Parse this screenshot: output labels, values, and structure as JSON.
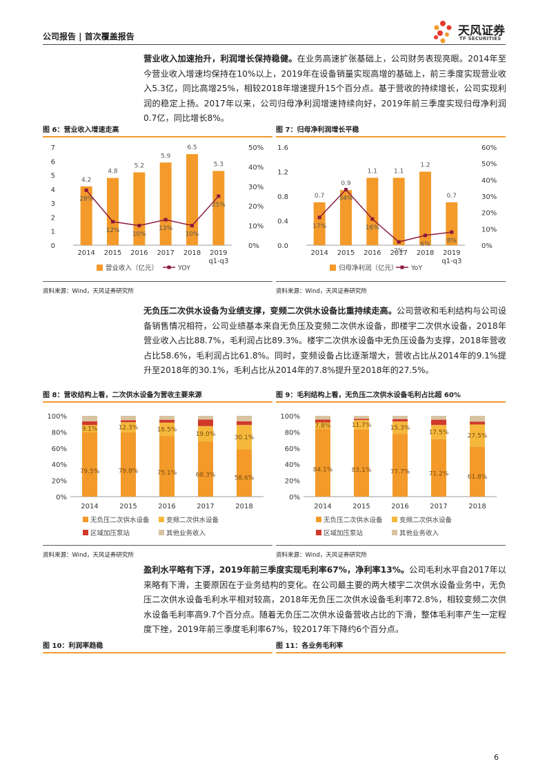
{
  "header": {
    "left": "公司报告 | 首次覆盖报告",
    "logo_cn": "天风证券",
    "logo_en": "TF SECURITIES"
  },
  "paragraphs": {
    "p1_bold": "营业收入加速抬升，利润增长保持稳健。",
    "p1_text": "在业务高速扩张基础上，公司财务表现亮眼。2014年至今营业收入增速均保持在10%以上，2019年在设备销量实现高增的基础上，前三季度实现营业收入5.3亿，同比高增25%，相较2018年增速提升15个百分点。基于营收的持续增长，公司实现利润的稳定上扬。2017年以来，公司归母净利润增速持续向好，2019年前三季度实现归母净利润0.7亿，同比增长8%。",
    "p2_bold": "无负压二次供水设备为业绩支撑，变频二次供水设备比重持续走高。",
    "p2_text": "公司营收和毛利结构与公司设备销售情况相符，公司业绩基本来自无负压及变频二次供水设备，即楼宇二次供水设备，2018年营业收入占比88.7%，毛利润占比89.3%。楼宇二次供水设备中无负压设备为支撑，2018年营收占比58.6%，毛利润占比61.8%。同时，变频设备占比逐渐增大，营收占比从2014年的9.1%提升至2018年的30.1%，毛利占比从2014年的7.8%提升至2018年的27.5%。",
    "p3_bold": "盈利水平略有下浮，2019年前三季度实现毛利率67%，净利率13%。",
    "p3_text": "公司毛利水平自2017年以来略有下滑，主要原因在于业务结构的变化。在公司最主要的两大楼宇二次供水设备业务中，无负压二次供水设备毛利水平相对较高，2018年无负压二次供水设备毛利率72.8%，相较变频二次供水设备毛利率高9.7个百分点。随着无负压二次供水设备营收占比的下滑，整体毛利率产生一定程度下挫，2019年前三季度毛利率67%，较2017年下降约6个百分点。"
  },
  "figures": {
    "fig6_title": "图 6：营业收入增速走高",
    "fig7_title": "图 7：归母净利润增长平稳",
    "fig8_title": "图 8：营收结构上看，二次供水设备为营收主要来源",
    "fig9_title": "图 9：毛利结构上看，无负压二次供水设备毛利占比超 60%",
    "fig10_title": "图 10：利润率趋稳",
    "fig11_title": "图 11：各业务毛利率",
    "source": "资料来源：Wind，天风证券研究所"
  },
  "page_number": "6",
  "colors": {
    "orange": "#F39A2A",
    "dark_red": "#8B1A3A",
    "yellow": "#F5B83C",
    "red": "#D0392B",
    "tan": "#D8C3A0"
  },
  "chart_data": [
    {
      "type": "bar",
      "categories": [
        "2014",
        "2015",
        "2016",
        "2017",
        "2018",
        "2019 q1-q3"
      ],
      "series": [
        {
          "name": "营业收入（亿元）",
          "values": [
            4.2,
            4.8,
            5.2,
            5.9,
            6.5,
            5.3
          ],
          "labels": [
            "4.2",
            "4.8",
            "5.2",
            "5.9",
            "6.5",
            "5.3"
          ],
          "axis": "left"
        },
        {
          "name": "YOY",
          "type": "line",
          "values": [
            28,
            12,
            10,
            13,
            10,
            25
          ],
          "labels": [
            "28%",
            "12%",
            "10%",
            "13%",
            "10%",
            "25%"
          ],
          "axis": "right"
        }
      ],
      "yticks": [
        "0",
        "1",
        "2",
        "3",
        "4",
        "5",
        "6",
        "7"
      ],
      "y2ticks": [
        "0%",
        "10%",
        "20%",
        "30%",
        "40%",
        "50%"
      ],
      "ylim": [
        0,
        7
      ],
      "y2lim": [
        0,
        50
      ]
    },
    {
      "type": "bar",
      "categories": [
        "2014",
        "2015",
        "2016",
        "2017",
        "2018",
        "2019 q1-q3"
      ],
      "series": [
        {
          "name": "归母净利润（亿元）",
          "values": [
            0.7,
            0.9,
            1.1,
            1.1,
            1.2,
            0.7
          ],
          "labels": [
            "0.7",
            "0.9",
            "1.1",
            "1.1",
            "1.2",
            "0.7"
          ],
          "axis": "left"
        },
        {
          "name": "YoY",
          "type": "line",
          "values": [
            17,
            34,
            16,
            2,
            6,
            8
          ],
          "labels": [
            "17%",
            "34%",
            "16%",
            "2%",
            "6%",
            "8%"
          ],
          "axis": "right"
        }
      ],
      "yticks": [
        "0.0",
        "0.4",
        "0.8",
        "1.2",
        "1.6"
      ],
      "y2ticks": [
        "0%",
        "10%",
        "20%",
        "30%",
        "40%",
        "50%",
        "60%"
      ],
      "ylim": [
        0,
        1.6
      ],
      "y2lim": [
        0,
        60
      ]
    },
    {
      "type": "bar",
      "stacked": true,
      "categories": [
        "2014",
        "2015",
        "2016",
        "2017",
        "2018"
      ],
      "series": [
        {
          "name": "无负压二次供水设备",
          "values": [
            79.5,
            79.8,
            75.1,
            68.3,
            58.6
          ],
          "labels": [
            "79.5%",
            "79.8%",
            "75.1%",
            "68.3%",
            "58.6%"
          ]
        },
        {
          "name": "变频二次供水设备",
          "values": [
            9.1,
            12.3,
            16.5,
            19.0,
            30.1
          ],
          "labels": [
            "9.1%",
            "12.3%",
            "16.5%",
            "19.0%",
            "30.1%"
          ]
        },
        {
          "name": "区域加压泵站",
          "values": [
            4.5,
            2.5,
            3.5,
            8.0,
            4.5
          ]
        },
        {
          "name": "其他业务收入",
          "values": [
            6.9,
            5.4,
            4.9,
            4.7,
            6.8
          ]
        }
      ],
      "yticks": [
        "0%",
        "20%",
        "40%",
        "60%",
        "80%",
        "100%"
      ],
      "ylim": [
        0,
        100
      ]
    },
    {
      "type": "bar",
      "stacked": true,
      "categories": [
        "2014",
        "2015",
        "2016",
        "2017",
        "2018"
      ],
      "series": [
        {
          "name": "无负压二次供水设备",
          "values": [
            84.1,
            83.1,
            77.7,
            71.2,
            61.8
          ],
          "labels": [
            "84.1%",
            "83.1%",
            "77.7%",
            "71.2%",
            "61.8%"
          ]
        },
        {
          "name": "变频二次供水设备",
          "values": [
            7.8,
            11.7,
            15.3,
            17.5,
            27.5
          ],
          "labels": [
            "7.8%",
            "11.7%",
            "15.3%",
            "17.5%",
            "27.5%"
          ]
        },
        {
          "name": "区域加压泵站",
          "values": [
            3.5,
            1.5,
            3.0,
            6.5,
            3.5
          ]
        },
        {
          "name": "其他业务收入",
          "values": [
            4.6,
            3.7,
            4.0,
            4.8,
            7.2
          ]
        }
      ],
      "yticks": [
        "0%",
        "20%",
        "40%",
        "60%",
        "80%",
        "100%"
      ],
      "ylim": [
        0,
        100
      ]
    }
  ]
}
